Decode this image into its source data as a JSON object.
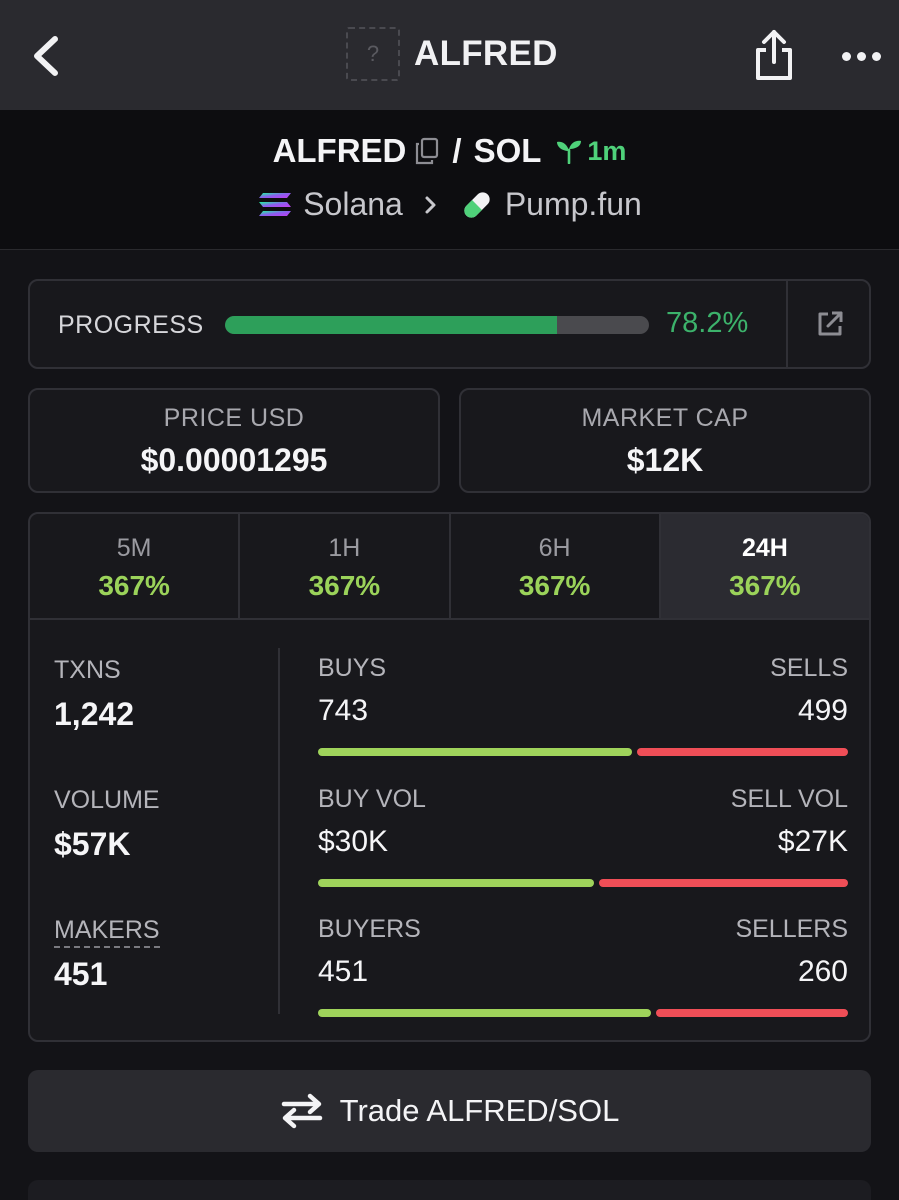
{
  "header": {
    "title": "ALFRED",
    "thumb_placeholder": "?"
  },
  "pair": {
    "base": "ALFRED",
    "separator": "/",
    "quote": "SOL",
    "age": "1m",
    "chain": "Solana",
    "dex": "Pump.fun"
  },
  "progress": {
    "label": "PROGRESS",
    "value_text": "78.2%",
    "fraction": 0.782
  },
  "price_usd": {
    "label": "PRICE USD",
    "value": "$0.00001295"
  },
  "market_cap": {
    "label": "MARKET CAP",
    "value": "$12K"
  },
  "tabs": [
    {
      "label": "5M",
      "value": "367%"
    },
    {
      "label": "1H",
      "value": "367%"
    },
    {
      "label": "6H",
      "value": "367%"
    },
    {
      "label": "24H",
      "value": "367%"
    }
  ],
  "metrics": {
    "txns": {
      "label": "TXNS",
      "value": "1,242"
    },
    "volume": {
      "label": "VOLUME",
      "value": "$57K"
    },
    "makers": {
      "label": "MAKERS",
      "value": "451"
    }
  },
  "splits": {
    "txns": {
      "left_label": "BUYS",
      "right_label": "SELLS",
      "left_value": "743",
      "right_value": "499",
      "buy_fraction": 0.598
    },
    "volume": {
      "left_label": "BUY VOL",
      "right_label": "SELL VOL",
      "left_value": "$30K",
      "right_value": "$27K",
      "buy_fraction": 0.526
    },
    "makers": {
      "left_label": "BUYERS",
      "right_label": "SELLERS",
      "left_value": "451",
      "right_value": "260",
      "buy_fraction": 0.634
    }
  },
  "trade": {
    "label": "Trade ALFRED/SOL"
  },
  "colors": {
    "accent_green": "#3cb26b",
    "change_green": "#9bd35a",
    "buy_bar": "#9fd35b",
    "sell_bar": "#ef4e57"
  }
}
